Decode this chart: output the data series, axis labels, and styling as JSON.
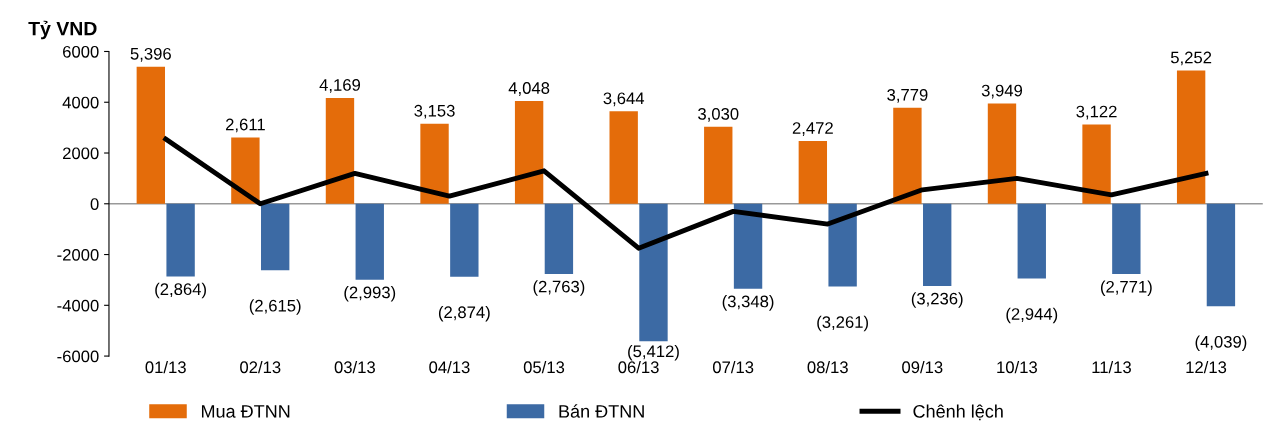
{
  "chart_data": {
    "type": "bar",
    "ylabel": "Tỷ VND",
    "categories": [
      "01/13",
      "02/13",
      "03/13",
      "04/13",
      "05/13",
      "06/13",
      "07/13",
      "08/13",
      "09/13",
      "10/13",
      "11/13",
      "12/13"
    ],
    "series": [
      {
        "name": "Mua ĐTNN",
        "color": "#e46c0a",
        "values": [
          5396,
          2611,
          4169,
          3153,
          4048,
          3644,
          3030,
          2472,
          3779,
          3949,
          3122,
          5252
        ],
        "value_labels": [
          "5,396",
          "2,611",
          "4,169",
          "3,153",
          "4,048",
          "3,644",
          "3,030",
          "2,472",
          "3,779",
          "3,949",
          "3,122",
          "5,252"
        ]
      },
      {
        "name": "Bán ĐTNN",
        "color": "#3c6aa4",
        "values": [
          -2864,
          -2615,
          -2993,
          -2874,
          -2763,
          -5412,
          -3348,
          -3261,
          -3236,
          -2944,
          -2771,
          -4039
        ],
        "value_labels": [
          "(2,864)",
          "(2,615)",
          "(2,993)",
          "(2,874)",
          "(2,763)",
          "(5,412)",
          "(3,348)",
          "(3,261)",
          "(3,236)",
          "(2,944)",
          "(2,771)",
          "(4,039)"
        ]
      },
      {
        "name": "Chênh lệch",
        "type": "line",
        "color": "#000000",
        "values": [
          2550,
          0,
          1200,
          300,
          1300,
          -1750,
          -300,
          -800,
          550,
          1000,
          350,
          1200
        ]
      }
    ],
    "ylim": [
      -6000,
      6000
    ],
    "yticks": [
      -6000,
      -4000,
      -2000,
      0,
      2000,
      4000,
      6000
    ],
    "legend": "bottom",
    "marker": "none",
    "line_style": "solid"
  }
}
